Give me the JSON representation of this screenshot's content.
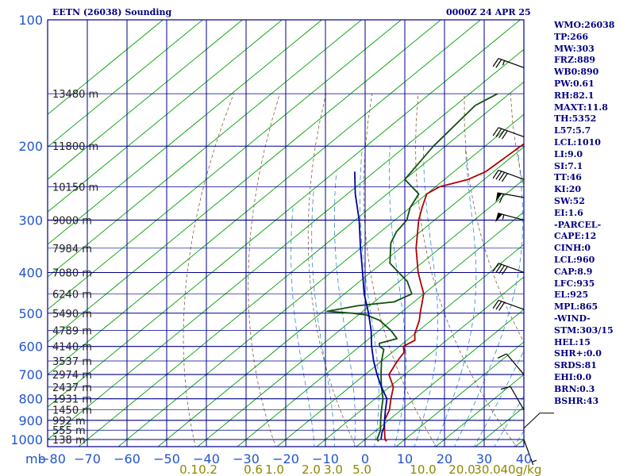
{
  "title_left": "EETN (26038) Sounding",
  "title_right": "0000Z 24 APR 25",
  "chart_data": {
    "type": "line",
    "title": "EETN (26038) Sounding",
    "subtitle": "0000Z 24 APR 25",
    "pressure_ticks": [
      100,
      200,
      300,
      400,
      500,
      600,
      700,
      800,
      900,
      1000
    ],
    "pressure_unit": "mb",
    "ylim": [
      100,
      1050
    ],
    "xlim": [
      -80,
      40
    ],
    "temperature_ticks": [
      -80,
      -70,
      -60,
      -50,
      -40,
      -30,
      -20,
      -10,
      0,
      10,
      20,
      30,
      40
    ],
    "mixing_ratio_labels": [
      "0.1",
      "0.2",
      "0.6",
      "1.0",
      "2.0",
      "3.0",
      "5.0",
      "10.0",
      "20.0",
      "30.0",
      "40",
      "g/kg"
    ],
    "height_labels": [
      {
        "text": "13480 m",
        "p": 150
      },
      {
        "text": "11800 m",
        "p": 200
      },
      {
        "text": "10150 m",
        "p": 250
      },
      {
        "text": "9000 m",
        "p": 300
      },
      {
        "text": "7984 m",
        "p": 350
      },
      {
        "text": "7080 m",
        "p": 400
      },
      {
        "text": "6240 m",
        "p": 450
      },
      {
        "text": "5490 m",
        "p": 500
      },
      {
        "text": "4789 m",
        "p": 550
      },
      {
        "text": "4140 m",
        "p": 600
      },
      {
        "text": "3537 m",
        "p": 650
      },
      {
        "text": "2974 m",
        "p": 700
      },
      {
        "text": "2437 m",
        "p": 750
      },
      {
        "text": "1931 m",
        "p": 800
      },
      {
        "text": "1450 m",
        "p": 850
      },
      {
        "text": "992 m",
        "p": 900
      },
      {
        "text": "555 m",
        "p": 950
      },
      {
        "text": "138 m",
        "p": 1000
      }
    ],
    "series": [
      {
        "key": "temperature",
        "color": "#b00000",
        "points": [
          [
            1010,
            6
          ],
          [
            1000,
            5
          ],
          [
            950,
            2
          ],
          [
            900,
            -1
          ],
          [
            850,
            -3
          ],
          [
            800,
            -6
          ],
          [
            750,
            -9
          ],
          [
            700,
            -14
          ],
          [
            650,
            -16
          ],
          [
            620,
            -17
          ],
          [
            600,
            -19
          ],
          [
            580,
            -18
          ],
          [
            560,
            -20
          ],
          [
            520,
            -23
          ],
          [
            500,
            -25
          ],
          [
            450,
            -30
          ],
          [
            400,
            -38
          ],
          [
            350,
            -46
          ],
          [
            300,
            -54
          ],
          [
            280,
            -57
          ],
          [
            260,
            -60
          ],
          [
            250,
            -59
          ],
          [
            240,
            -54
          ],
          [
            230,
            -52
          ],
          [
            200,
            -51
          ],
          [
            170,
            -50
          ],
          [
            150,
            -50
          ]
        ]
      },
      {
        "key": "dewpoint",
        "color": "#105010",
        "points": [
          [
            1010,
            4
          ],
          [
            1000,
            3
          ],
          [
            950,
            1
          ],
          [
            900,
            -2
          ],
          [
            850,
            -5
          ],
          [
            800,
            -8
          ],
          [
            750,
            -12
          ],
          [
            700,
            -16
          ],
          [
            650,
            -20
          ],
          [
            610,
            -23
          ],
          [
            600,
            -25
          ],
          [
            590,
            -26
          ],
          [
            575,
            -23
          ],
          [
            550,
            -27
          ],
          [
            520,
            -33
          ],
          [
            505,
            -38
          ],
          [
            500,
            -42
          ],
          [
            495,
            -49
          ],
          [
            490,
            -47
          ],
          [
            480,
            -43
          ],
          [
            470,
            -35
          ],
          [
            450,
            -33
          ],
          [
            420,
            -38
          ],
          [
            380,
            -48
          ],
          [
            340,
            -54
          ],
          [
            320,
            -56
          ],
          [
            300,
            -57
          ],
          [
            280,
            -60
          ],
          [
            260,
            -62
          ],
          [
            240,
            -70
          ],
          [
            200,
            -73
          ],
          [
            160,
            -75
          ],
          [
            150,
            -73
          ]
        ]
      },
      {
        "key": "parcel",
        "color": "#0000a0",
        "points": [
          [
            1000,
            4
          ],
          [
            960,
            2
          ],
          [
            935,
            1
          ],
          [
            900,
            -1
          ],
          [
            850,
            -4
          ],
          [
            800,
            -7
          ],
          [
            750,
            -12
          ],
          [
            700,
            -17
          ],
          [
            650,
            -22
          ],
          [
            600,
            -27
          ],
          [
            550,
            -32
          ],
          [
            500,
            -38
          ],
          [
            450,
            -45
          ],
          [
            400,
            -52
          ],
          [
            350,
            -60
          ],
          [
            300,
            -69
          ],
          [
            260,
            -78
          ],
          [
            230,
            -85
          ]
        ]
      }
    ],
    "wind_barbs": [
      {
        "p": 130,
        "dir": 290,
        "spd": 25
      },
      {
        "p": 190,
        "dir": 290,
        "spd": 40
      },
      {
        "p": 240,
        "dir": 290,
        "spd": 40
      },
      {
        "p": 265,
        "dir": 280,
        "spd": 60
      },
      {
        "p": 300,
        "dir": 285,
        "spd": 55
      },
      {
        "p": 400,
        "dir": 290,
        "spd": 40
      },
      {
        "p": 490,
        "dir": 290,
        "spd": 30
      },
      {
        "p": 700,
        "dir": 320,
        "spd": 10
      },
      {
        "p": 850,
        "dir": 330,
        "spd": 10
      },
      {
        "p": 1000,
        "dir": 160,
        "spd": 5
      }
    ],
    "grid": true,
    "legend": "none"
  },
  "indices": [
    "WMO:26038",
    "TP:266",
    "MW:303",
    "FRZ:889",
    "WB0:890",
    "PW:0.61",
    "RH:82.1",
    "MAXT:11.8",
    "TH:5352",
    "L57:5.7",
    "LCL:1010",
    "LI:9.0",
    "SI:7.1",
    "TT:46",
    "KI:20",
    "SW:52",
    "EI:1.6",
    "-PARCEL-",
    "CAPE:12",
    "CINH:0",
    "LCL:960",
    "CAP:8.9",
    "LFC:935",
    "EL:925",
    "MPL:865",
    "-WIND-",
    "STM:303/15",
    "HEL:15",
    "SHR+:0.0",
    "SRDS:81",
    "EHI:0.0",
    "BRN:0.3",
    "BSHR:43"
  ],
  "colors": {
    "isobar": "#00008b",
    "isotherm": "#00008b",
    "skewed_isotherm": "#00a000",
    "dry_adiabat": "#806040",
    "moist_adiabat": "#2b8cd6",
    "axis_label": "#2255cc",
    "mixing_label": "#8a8a00",
    "text": "#000080"
  }
}
